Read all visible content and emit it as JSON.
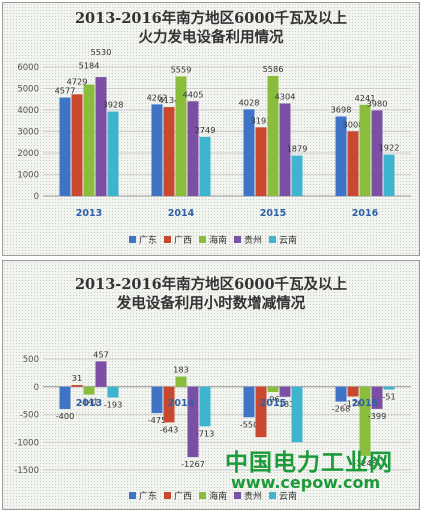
{
  "chart_data": [
    {
      "type": "bar",
      "title_line1": "2013-2016年南方地区6000千瓦及以上",
      "title_line2": "火力发电设备利用情况",
      "categories": [
        "2013",
        "2014",
        "2015",
        "2016"
      ],
      "ylim": [
        0,
        6000
      ],
      "yticks": [
        "0",
        "1000",
        "2000",
        "3000",
        "4000",
        "5000",
        "6000"
      ],
      "grid": true,
      "legend": "bottom",
      "series": [
        {
          "name": "广东",
          "color": "#3f73c6",
          "values": [
            4577,
            4262,
            4028,
            3698
          ]
        },
        {
          "name": "广西",
          "color": "#c8492f",
          "values": [
            4729,
            4134,
            3193,
            3008
          ]
        },
        {
          "name": "海南",
          "color": "#8bbd3c",
          "values": [
            5184,
            5559,
            5586,
            4241
          ]
        },
        {
          "name": "贵州",
          "color": "#7b4fa3",
          "values": [
            5530,
            4405,
            4304,
            3980
          ]
        },
        {
          "name": "云南",
          "color": "#3fb4cf",
          "values": [
            3928,
            2749,
            1879,
            1922
          ]
        }
      ]
    },
    {
      "type": "bar",
      "title_line1": "2013-2016年南方地区6000千瓦及以上",
      "title_line2": "发电设备利用小时数增减情况",
      "categories": [
        "2013",
        "2014",
        "2015",
        "2016"
      ],
      "ylim": [
        -1500,
        500
      ],
      "yticks": [
        "-1500",
        "-1000",
        "-500",
        "0",
        "500"
      ],
      "grid": true,
      "legend": "bottom",
      "series": [
        {
          "name": "广东",
          "color": "#3f73c6",
          "values": [
            -400,
            -475,
            -550,
            -268
          ]
        },
        {
          "name": "广西",
          "color": "#c8492f",
          "values": [
            31,
            -643,
            -909,
            -176
          ]
        },
        {
          "name": "海南",
          "color": "#8bbd3c",
          "values": [
            -141,
            183,
            -96,
            -1245
          ]
        },
        {
          "name": "贵州",
          "color": "#7b4fa3",
          "values": [
            457,
            -1267,
            -181,
            -399
          ]
        },
        {
          "name": "云南",
          "color": "#3fb4cf",
          "values": [
            -193,
            -713,
            -1000,
            -51
          ]
        }
      ],
      "data_labels": [
        [
          "-400",
          "31",
          "-141",
          "457",
          "-193"
        ],
        [
          "-475",
          "-643",
          "183",
          "-1267",
          "-713"
        ],
        [
          "-550",
          "",
          "-96",
          "-181",
          ""
        ],
        [
          "-268",
          "-176",
          "-1245",
          "-399",
          "-51"
        ]
      ]
    }
  ],
  "watermark": {
    "cn": "中国电力工业网",
    "url": "www.cepow.com"
  }
}
